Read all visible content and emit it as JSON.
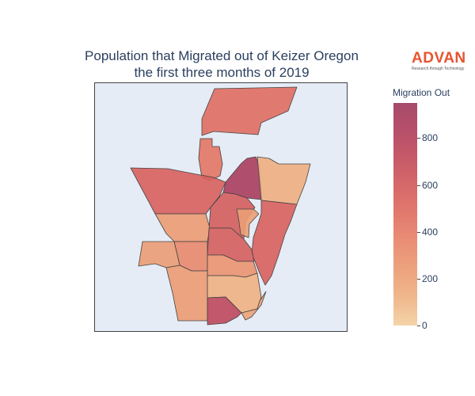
{
  "title": {
    "line1": "Population that Migrated out of Keizer Oregon",
    "line2": "the first three months of 2019"
  },
  "logo": {
    "name": "ADVAN",
    "tagline": "Research through Technology"
  },
  "colorbar": {
    "title": "Migration Out",
    "ticks": [
      "0",
      "200",
      "400",
      "600",
      "800"
    ],
    "min": 0,
    "max": 950,
    "colorscale": [
      "#f3d0a0",
      "#eeb183",
      "#eb9b73",
      "#e8856a",
      "#e06f62",
      "#d35c5c",
      "#c24c5b",
      "#b0405e",
      "#9f3a5e"
    ]
  },
  "chart_data": {
    "type": "choropleth",
    "colorbar_title": "Migration Out",
    "value_range": [
      0,
      950
    ],
    "regions": [
      {
        "id": "north-strip",
        "value": 480
      },
      {
        "id": "north-mid",
        "value": 440
      },
      {
        "id": "west-large",
        "value": 560
      },
      {
        "id": "central-tall",
        "value": 880
      },
      {
        "id": "northeast",
        "value": 130
      },
      {
        "id": "central-right",
        "value": 590
      },
      {
        "id": "small-tan",
        "value": 220
      },
      {
        "id": "east-strip",
        "value": 560
      },
      {
        "id": "left-mid",
        "value": 240
      },
      {
        "id": "center-strip",
        "value": 580
      },
      {
        "id": "left-inner",
        "value": 340
      },
      {
        "id": "far-left",
        "value": 230
      },
      {
        "id": "middle-block",
        "value": 280
      },
      {
        "id": "left-bottom",
        "value": 240
      },
      {
        "id": "center-pale",
        "value": 120
      },
      {
        "id": "bottom-red",
        "value": 750
      },
      {
        "id": "bottom-tail",
        "value": 200
      }
    ]
  }
}
